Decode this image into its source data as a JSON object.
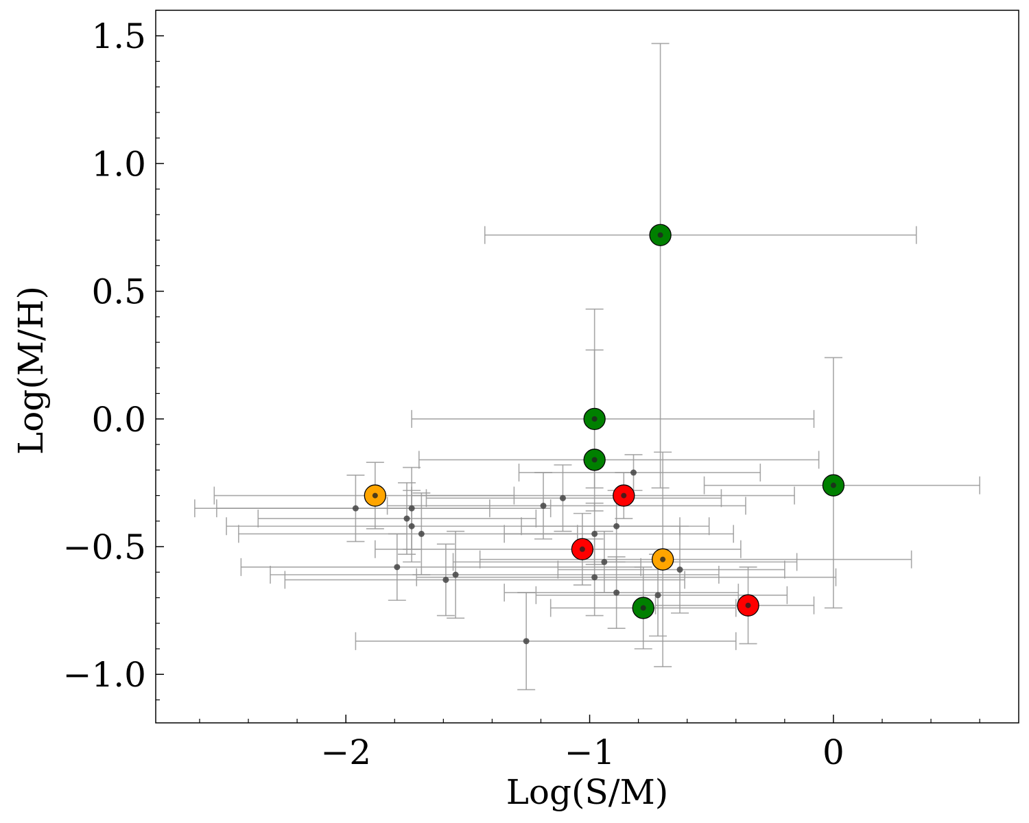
{
  "chart_data": {
    "type": "scatter",
    "title": "",
    "xlabel": "Log(S/M)",
    "ylabel": "Log(M/H)",
    "xlim": [
      -2.78,
      0.76
    ],
    "ylim": [
      -1.19,
      1.6
    ],
    "x_ticks": [
      {
        "value": -2,
        "label": "−2"
      },
      {
        "value": -1,
        "label": "−1"
      },
      {
        "value": 0,
        "label": "0"
      }
    ],
    "x_minor_step": 0.2,
    "y_ticks": [
      {
        "value": -1.0,
        "label": "−1.0"
      },
      {
        "value": -0.5,
        "label": "−0.5"
      },
      {
        "value": 0.0,
        "label": "0.0"
      },
      {
        "value": 0.5,
        "label": "0.5"
      },
      {
        "value": 1.0,
        "label": "1.0"
      },
      {
        "value": 1.5,
        "label": "1.5"
      }
    ],
    "y_minor_step": 0.1,
    "colors": {
      "errorbar": "#999999",
      "small_marker": "#444444",
      "green": "#008000",
      "orange": "#FFA500",
      "red": "#FF0000"
    },
    "series": [
      {
        "name": "background",
        "marker": "small",
        "points": [
          {
            "x": -1.96,
            "y": -0.35,
            "xerr": [
              0.66,
              0.55
            ],
            "yerr": 0.13
          },
          {
            "x": -1.75,
            "y": -0.39,
            "xerr": [
              0.61,
              0.53
            ],
            "yerr": 0.14
          },
          {
            "x": -1.73,
            "y": -0.35,
            "xerr": [
              0.8,
              0.57
            ],
            "yerr": 0.16
          },
          {
            "x": -1.73,
            "y": -0.42,
            "xerr": [
              0.76,
              1.1
            ],
            "yerr": 0.14
          },
          {
            "x": -1.69,
            "y": -0.45,
            "xerr": [
              0.75,
              0.64
            ],
            "yerr": 0.16
          },
          {
            "x": -1.79,
            "y": -0.58,
            "xerr": [
              0.64,
              1.0
            ],
            "yerr": 0.13
          },
          {
            "x": -1.59,
            "y": -0.63,
            "xerr": [
              0.66,
              0.98
            ],
            "yerr": 0.14
          },
          {
            "x": -1.55,
            "y": -0.61,
            "xerr": [
              0.76,
              1.08
            ],
            "yerr": 0.17
          },
          {
            "x": -1.26,
            "y": -0.87,
            "xerr": [
              0.7,
              0.86
            ],
            "yerr": 0.19
          },
          {
            "x": -1.19,
            "y": -0.34,
            "xerr": [
              0.64,
              0.83
            ],
            "yerr": 0.13
          },
          {
            "x": -1.11,
            "y": -0.31,
            "xerr": [
              0.56,
              0.65
            ],
            "yerr": 0.13
          },
          {
            "x": -0.98,
            "y": -0.45,
            "xerr": [
              0.37,
              0.57
            ],
            "yerr": 0.12
          },
          {
            "x": -0.98,
            "y": -0.62,
            "xerr": [
              0.73,
              0.99
            ],
            "yerr": 0.15
          },
          {
            "x": -0.94,
            "y": -0.56,
            "xerr": [
              0.62,
              0.79
            ],
            "yerr": 0.12
          },
          {
            "x": -0.89,
            "y": -0.68,
            "xerr": [
              0.46,
              0.5
            ],
            "yerr": 0.14
          },
          {
            "x": -0.89,
            "y": -0.42,
            "xerr": [
              0.39,
              0.38
            ],
            "yerr": 0.14
          },
          {
            "x": -0.82,
            "y": -0.21,
            "xerr": [
              0.47,
              0.52
            ],
            "yerr": 0.07
          },
          {
            "x": -0.72,
            "y": -0.69,
            "xerr": [
              0.5,
              0.53
            ],
            "yerr": 0.16
          },
          {
            "x": -0.63,
            "y": -0.59,
            "xerr": [
              0.5,
              0.43
            ],
            "yerr": 0.17
          }
        ]
      },
      {
        "name": "green",
        "marker": "large",
        "color": "#008000",
        "points": [
          {
            "x": -0.71,
            "y": 0.72,
            "xerr": [
              0.72,
              1.05
            ],
            "yerr": [
              0.99,
              0.75
            ]
          },
          {
            "x": -0.98,
            "y": 0.0,
            "xerr": [
              0.75,
              0.9
            ],
            "yerr": [
              0.27,
              0.43
            ]
          },
          {
            "x": -0.98,
            "y": -0.16,
            "xerr": [
              0.72,
              0.92
            ],
            "yerr": [
              0.2,
              0.43
            ]
          },
          {
            "x": 0.0,
            "y": -0.26,
            "xerr": [
              0.53,
              0.6
            ],
            "yerr": [
              0.48,
              0.5
            ]
          },
          {
            "x": -0.78,
            "y": -0.74,
            "xerr": [
              0.38,
              0.38
            ],
            "yerr": 0.16
          }
        ]
      },
      {
        "name": "orange",
        "marker": "large",
        "color": "#FFA500",
        "points": [
          {
            "x": -1.88,
            "y": -0.3,
            "xerr": [
              0.66,
              0.57
            ],
            "yerr": 0.13
          },
          {
            "x": -0.7,
            "y": -0.55,
            "xerr": [
              0.75,
              1.02
            ],
            "yerr": 0.42
          }
        ]
      },
      {
        "name": "red",
        "marker": "large",
        "color": "#FF0000",
        "points": [
          {
            "x": -1.03,
            "y": -0.51,
            "xerr": [
              0.85,
              0.65
            ],
            "yerr": 0.14
          },
          {
            "x": -0.86,
            "y": -0.3,
            "xerr": [
              0.87,
              0.7
            ],
            "yerr": 0.09
          },
          {
            "x": -0.35,
            "y": -0.73,
            "xerr": [
              0.38,
              0.27
            ],
            "yerr": 0.15
          }
        ]
      }
    ]
  }
}
